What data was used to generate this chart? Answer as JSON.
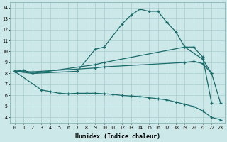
{
  "xlabel": "Humidex (Indice chaleur)",
  "background_color": "#cce8e8",
  "grid_color": "#aacece",
  "line_color": "#1a6b6b",
  "xlim": [
    -0.5,
    23.5
  ],
  "ylim": [
    3.5,
    14.5
  ],
  "xticks": [
    0,
    1,
    2,
    3,
    4,
    5,
    6,
    7,
    8,
    9,
    10,
    11,
    12,
    13,
    14,
    15,
    16,
    17,
    18,
    19,
    20,
    21,
    22,
    23
  ],
  "yticks": [
    4,
    5,
    6,
    7,
    8,
    9,
    10,
    11,
    12,
    13,
    14
  ],
  "line1_x": [
    0,
    1,
    2,
    7,
    9,
    10,
    12,
    13,
    14,
    15,
    16,
    17,
    18,
    19,
    21,
    22
  ],
  "line1_y": [
    8.2,
    8.3,
    8.0,
    8.2,
    10.2,
    10.4,
    12.5,
    13.3,
    13.85,
    13.65,
    13.65,
    12.65,
    11.8,
    10.4,
    9.3,
    8.0
  ],
  "line2_x": [
    0,
    2,
    9,
    10,
    19,
    20,
    21,
    22
  ],
  "line2_y": [
    8.2,
    8.0,
    8.8,
    9.0,
    10.4,
    10.4,
    9.5,
    5.3
  ],
  "line3_x": [
    0,
    2,
    9,
    10,
    19,
    20,
    21,
    22,
    23
  ],
  "line3_y": [
    8.2,
    8.15,
    8.5,
    8.6,
    9.0,
    9.1,
    8.9,
    8.0,
    5.3
  ],
  "line4_x": [
    0,
    3,
    4,
    5,
    6,
    7,
    8,
    9,
    10,
    11,
    12,
    13,
    14,
    15,
    16,
    17,
    18,
    19,
    20,
    21,
    22,
    23
  ],
  "line4_y": [
    8.2,
    6.5,
    6.35,
    6.2,
    6.15,
    6.2,
    6.2,
    6.2,
    6.15,
    6.1,
    6.0,
    5.95,
    5.9,
    5.8,
    5.7,
    5.6,
    5.4,
    5.2,
    5.0,
    4.6,
    4.0,
    3.8
  ]
}
